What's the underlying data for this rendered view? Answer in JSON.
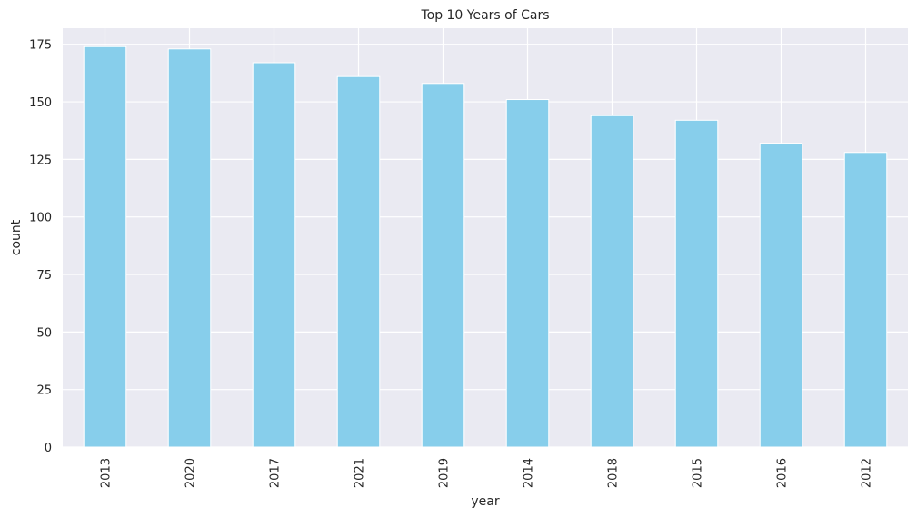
{
  "chart_data": {
    "type": "bar",
    "title": "Top 10 Years of Cars",
    "xlabel": "year",
    "ylabel": "count",
    "categories": [
      "2013",
      "2020",
      "2017",
      "2021",
      "2019",
      "2014",
      "2018",
      "2015",
      "2016",
      "2012"
    ],
    "values": [
      174,
      173,
      167,
      161,
      158,
      151,
      144,
      142,
      132,
      128
    ],
    "ylim": [
      0,
      182
    ],
    "yticks": [
      0,
      25,
      50,
      75,
      100,
      125,
      150,
      175
    ],
    "grid": true,
    "legend": "none",
    "colors": {
      "bar": "#87ceeb",
      "background": "#eaeaf2",
      "grid": "#ffffff",
      "text": "#262626"
    }
  }
}
